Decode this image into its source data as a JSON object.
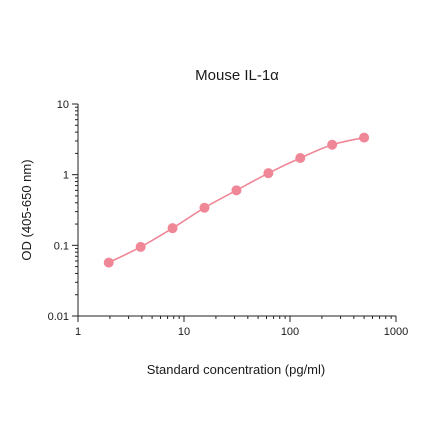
{
  "chart_data": {
    "type": "scatter",
    "title": "Mouse IL-1α",
    "xlabel": "Standard concentration (pg/ml)",
    "ylabel": "OD (405-650 nm)",
    "xscale": "log",
    "yscale": "log",
    "xlim": [
      1,
      1000
    ],
    "ylim": [
      0.01,
      10
    ],
    "xticks": [
      1,
      10,
      100,
      1000
    ],
    "xtick_labels": [
      "1",
      "10",
      "100",
      "1000"
    ],
    "yticks": [
      0.01,
      0.1,
      1,
      10
    ],
    "ytick_labels": [
      "0.01",
      "0.1",
      "1",
      "10"
    ],
    "grid": false,
    "legend": false,
    "color": "#ef8797",
    "series": [
      {
        "connected": true,
        "x": [
          1.95,
          3.9,
          7.8,
          15.6,
          31.25,
          62.5,
          125,
          250,
          500
        ],
        "y": [
          0.057,
          0.095,
          0.175,
          0.34,
          0.6,
          1.05,
          1.72,
          2.65,
          3.35
        ]
      }
    ]
  }
}
